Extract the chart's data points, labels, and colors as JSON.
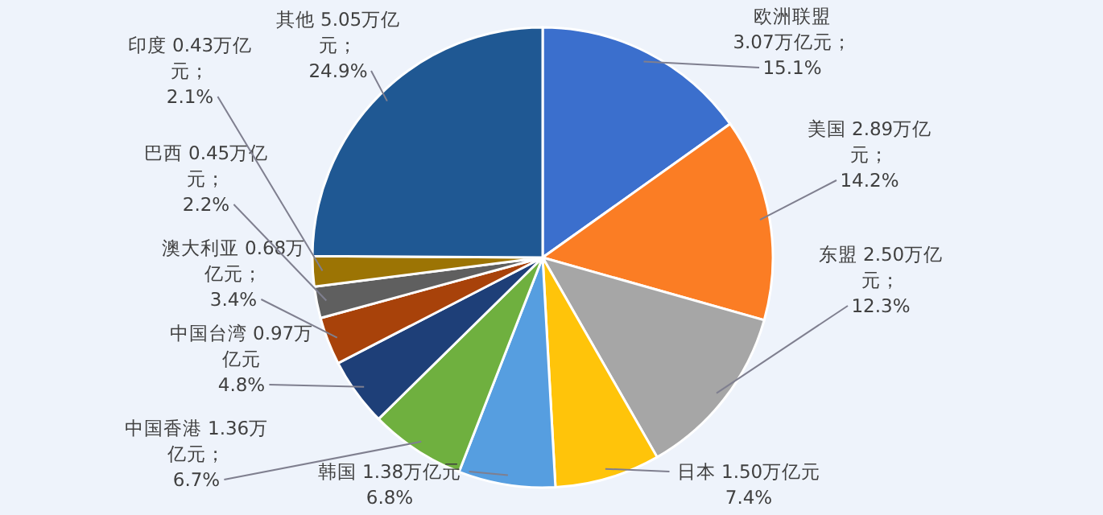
{
  "chart_data": {
    "type": "pie",
    "categories": [
      "欧洲联盟",
      "美国",
      "东盟",
      "日本",
      "韩国",
      "中国香港",
      "中国台湾",
      "澳大利亚",
      "巴西",
      "印度",
      "其他"
    ],
    "values": [
      3.07,
      2.89,
      2.5,
      1.5,
      1.38,
      1.36,
      0.97,
      0.68,
      0.45,
      0.43,
      5.05
    ],
    "value_labels": [
      "3.07万亿元；15.1%",
      "2.89万亿元；14.2%",
      "2.50万亿元；12.3%",
      "1.50万亿元7.4%",
      "1.38万亿元6.8%",
      "1.36万亿元；6.7%",
      "0.97万亿元4.8%",
      "0.68万亿元；3.4%",
      "0.45万亿元；2.2%",
      "0.43万亿元；2.1%",
      "5.05万亿元；24.9%"
    ],
    "colors": [
      "#3b6fcd",
      "#fb7d24",
      "#a6a6a6",
      "#ffc40a",
      "#569ee0",
      "#6fb03f",
      "#1e3f78",
      "#a8420a",
      "#5f5f5f",
      "#9c7404",
      "#1f5893"
    ]
  }
}
